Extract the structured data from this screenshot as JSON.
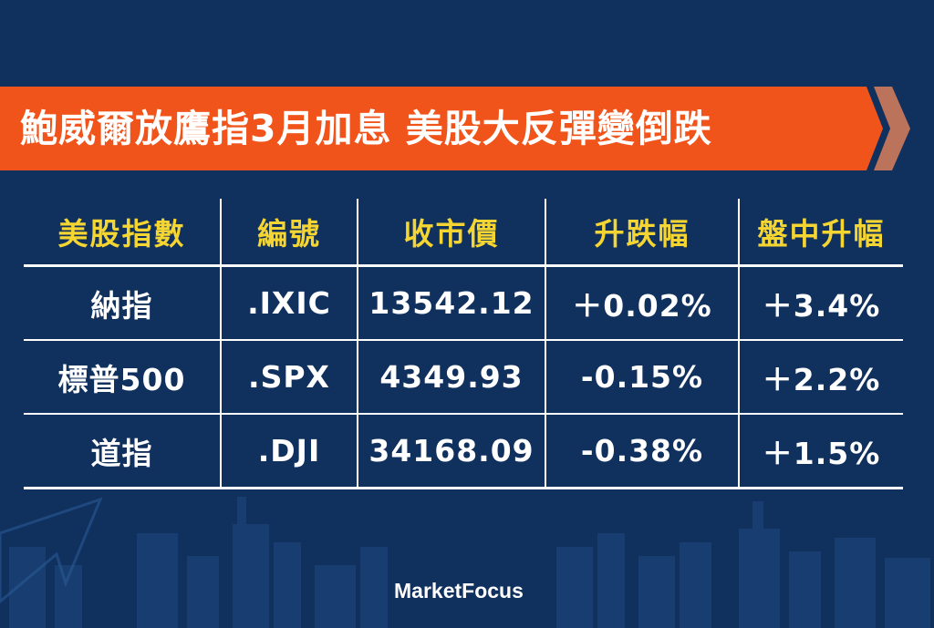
{
  "banner": {
    "title": "鮑威爾放鷹指3月加息 美股大反彈變倒跌",
    "color": "#f0541a"
  },
  "table": {
    "headers": [
      "美股指數",
      "編號",
      "收市價",
      "升跌幅",
      "盤中升幅"
    ],
    "rows": [
      {
        "name": "納指",
        "code": ".IXIC",
        "close": "13542.12",
        "change": "＋0.02%",
        "intraday": "＋3.4%"
      },
      {
        "name": "標普500",
        "code": ".SPX",
        "close": "4349.93",
        "change": "-0.15%",
        "intraday": "＋2.2%"
      },
      {
        "name": "道指",
        "code": ".DJI",
        "close": "34168.09",
        "change": "-0.38%",
        "intraday": "＋1.5%"
      }
    ]
  },
  "logo": "MarketFocus",
  "colors": {
    "background": "#10305e",
    "header_text": "#f5d531",
    "up": "#5ed36a",
    "down": "#f0596a"
  }
}
